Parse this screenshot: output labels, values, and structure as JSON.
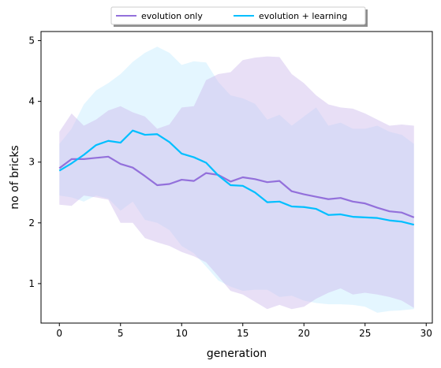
{
  "chart_data": {
    "type": "line",
    "xlabel": "generation",
    "ylabel": "no of bricks",
    "xlim": [
      -1.5,
      30.5
    ],
    "ylim": [
      0.35,
      5.15
    ],
    "xticks": [
      0,
      5,
      10,
      15,
      20,
      25,
      30
    ],
    "yticks": [
      1,
      2,
      3,
      4,
      5
    ],
    "legend_position": "top-center",
    "grid": false,
    "x": [
      0,
      1,
      2,
      3,
      4,
      5,
      6,
      7,
      8,
      9,
      10,
      11,
      12,
      13,
      14,
      15,
      16,
      17,
      18,
      19,
      20,
      21,
      22,
      23,
      24,
      25,
      26,
      27,
      28,
      29
    ],
    "series": [
      {
        "name": "evolution only",
        "color": "#9370db",
        "band_color": "#cbb8ec",
        "values": [
          2.9,
          3.05,
          3.05,
          3.07,
          3.09,
          2.97,
          2.91,
          2.77,
          2.62,
          2.64,
          2.71,
          2.69,
          2.82,
          2.79,
          2.68,
          2.75,
          2.72,
          2.67,
          2.69,
          2.52,
          2.47,
          2.43,
          2.39,
          2.41,
          2.35,
          2.32,
          2.25,
          2.19,
          2.17,
          2.09
        ],
        "upper": [
          3.5,
          3.8,
          3.6,
          3.7,
          3.85,
          3.92,
          3.82,
          3.75,
          3.55,
          3.62,
          3.9,
          3.92,
          4.35,
          4.45,
          4.48,
          4.68,
          4.72,
          4.74,
          4.73,
          4.45,
          4.3,
          4.1,
          3.95,
          3.9,
          3.88,
          3.8,
          3.7,
          3.6,
          3.62,
          3.6
        ],
        "lower": [
          2.3,
          2.28,
          2.45,
          2.42,
          2.38,
          2.0,
          2.0,
          1.75,
          1.68,
          1.62,
          1.52,
          1.45,
          1.35,
          1.12,
          0.88,
          0.82,
          0.7,
          0.58,
          0.65,
          0.58,
          0.62,
          0.75,
          0.85,
          0.92,
          0.82,
          0.85,
          0.82,
          0.78,
          0.72,
          0.6
        ]
      },
      {
        "name": "evolution + learning",
        "color": "#00bfff",
        "band_color": "#b3e5ff",
        "values": [
          2.86,
          2.98,
          3.12,
          3.28,
          3.35,
          3.32,
          3.52,
          3.45,
          3.46,
          3.33,
          3.14,
          3.08,
          2.99,
          2.78,
          2.62,
          2.61,
          2.5,
          2.34,
          2.35,
          2.27,
          2.26,
          2.23,
          2.13,
          2.14,
          2.1,
          2.09,
          2.08,
          2.04,
          2.02,
          1.97
        ],
        "upper": [
          3.3,
          3.55,
          3.95,
          4.18,
          4.3,
          4.45,
          4.65,
          4.8,
          4.9,
          4.8,
          4.6,
          4.66,
          4.64,
          4.32,
          4.1,
          4.05,
          3.96,
          3.7,
          3.78,
          3.6,
          3.75,
          3.9,
          3.6,
          3.65,
          3.55,
          3.55,
          3.6,
          3.5,
          3.45,
          3.3
        ],
        "lower": [
          2.45,
          2.42,
          2.35,
          2.45,
          2.4,
          2.2,
          2.35,
          2.05,
          2.0,
          1.88,
          1.62,
          1.5,
          1.28,
          1.05,
          0.95,
          0.88,
          0.9,
          0.9,
          0.78,
          0.8,
          0.72,
          0.68,
          0.66,
          0.66,
          0.65,
          0.62,
          0.52,
          0.55,
          0.56,
          0.58
        ]
      }
    ]
  }
}
